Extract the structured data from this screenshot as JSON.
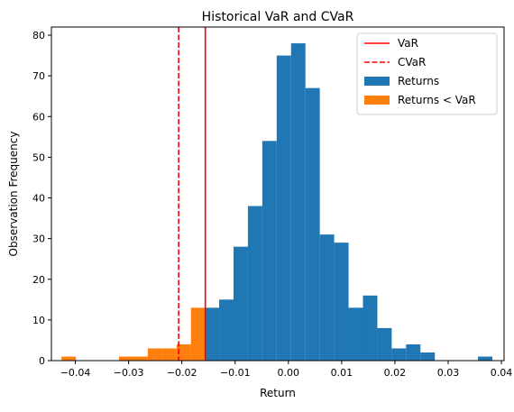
{
  "chart_data": {
    "type": "histogram",
    "title": "Historical VaR and CVaR",
    "xlabel": "Return",
    "ylabel": "Observation Frequency",
    "xlim": [
      -0.0445,
      0.0405
    ],
    "ylim": [
      0,
      82
    ],
    "xticks": [
      -0.04,
      -0.03,
      -0.02,
      -0.01,
      0.0,
      0.01,
      0.02,
      0.03,
      0.04
    ],
    "xtick_labels": [
      "−0.04",
      "−0.03",
      "−0.02",
      "−0.01",
      "0.00",
      "0.01",
      "0.02",
      "0.03",
      "0.04"
    ],
    "yticks": [
      0,
      10,
      20,
      30,
      40,
      50,
      60,
      70,
      80
    ],
    "ytick_labels": [
      "0",
      "10",
      "20",
      "30",
      "40",
      "50",
      "60",
      "70",
      "80"
    ],
    "grid": false,
    "legend_position": "top-right",
    "series": [
      {
        "name": "Returns",
        "color": "#1f77b4",
        "bins": [
          {
            "x0": -0.0156,
            "x1": -0.013,
            "count": 13
          },
          {
            "x0": -0.013,
            "x1": -0.0103,
            "count": 15
          },
          {
            "x0": -0.0103,
            "x1": -0.0076,
            "count": 28
          },
          {
            "x0": -0.0076,
            "x1": -0.0049,
            "count": 38
          },
          {
            "x0": -0.0049,
            "x1": -0.0022,
            "count": 54
          },
          {
            "x0": -0.0022,
            "x1": 0.0005,
            "count": 75
          },
          {
            "x0": 0.0005,
            "x1": 0.0032,
            "count": 78
          },
          {
            "x0": 0.0032,
            "x1": 0.0059,
            "count": 67
          },
          {
            "x0": 0.0059,
            "x1": 0.0086,
            "count": 31
          },
          {
            "x0": 0.0086,
            "x1": 0.0113,
            "count": 29
          },
          {
            "x0": 0.0113,
            "x1": 0.014,
            "count": 13
          },
          {
            "x0": 0.014,
            "x1": 0.0167,
            "count": 16
          },
          {
            "x0": 0.0167,
            "x1": 0.0194,
            "count": 8
          },
          {
            "x0": 0.0194,
            "x1": 0.0221,
            "count": 3
          },
          {
            "x0": 0.0221,
            "x1": 0.0248,
            "count": 4
          },
          {
            "x0": 0.0248,
            "x1": 0.0275,
            "count": 2
          },
          {
            "x0": 0.0275,
            "x1": 0.0302,
            "count": 0
          },
          {
            "x0": 0.0302,
            "x1": 0.0329,
            "count": 0
          },
          {
            "x0": 0.0329,
            "x1": 0.0356,
            "count": 0
          },
          {
            "x0": 0.0356,
            "x1": 0.0383,
            "count": 1
          }
        ]
      },
      {
        "name": "Returns < VaR",
        "color": "#ff7f0e",
        "bins": [
          {
            "x0": -0.0426,
            "x1": -0.0399,
            "count": 1
          },
          {
            "x0": -0.0399,
            "x1": -0.0372,
            "count": 0
          },
          {
            "x0": -0.0372,
            "x1": -0.0345,
            "count": 0
          },
          {
            "x0": -0.0345,
            "x1": -0.0318,
            "count": 0
          },
          {
            "x0": -0.0318,
            "x1": -0.0291,
            "count": 1
          },
          {
            "x0": -0.0291,
            "x1": -0.0264,
            "count": 1
          },
          {
            "x0": -0.0264,
            "x1": -0.0237,
            "count": 3
          },
          {
            "x0": -0.0237,
            "x1": -0.021,
            "count": 3
          },
          {
            "x0": -0.021,
            "x1": -0.0183,
            "count": 4
          },
          {
            "x0": -0.0183,
            "x1": -0.0156,
            "count": 13
          }
        ]
      }
    ],
    "lines": [
      {
        "name": "VaR",
        "x": -0.0156,
        "color": "#ff0000",
        "style": "solid"
      },
      {
        "name": "CVaR",
        "x": -0.0206,
        "color": "#ff0000",
        "style": "dashed"
      }
    ]
  }
}
